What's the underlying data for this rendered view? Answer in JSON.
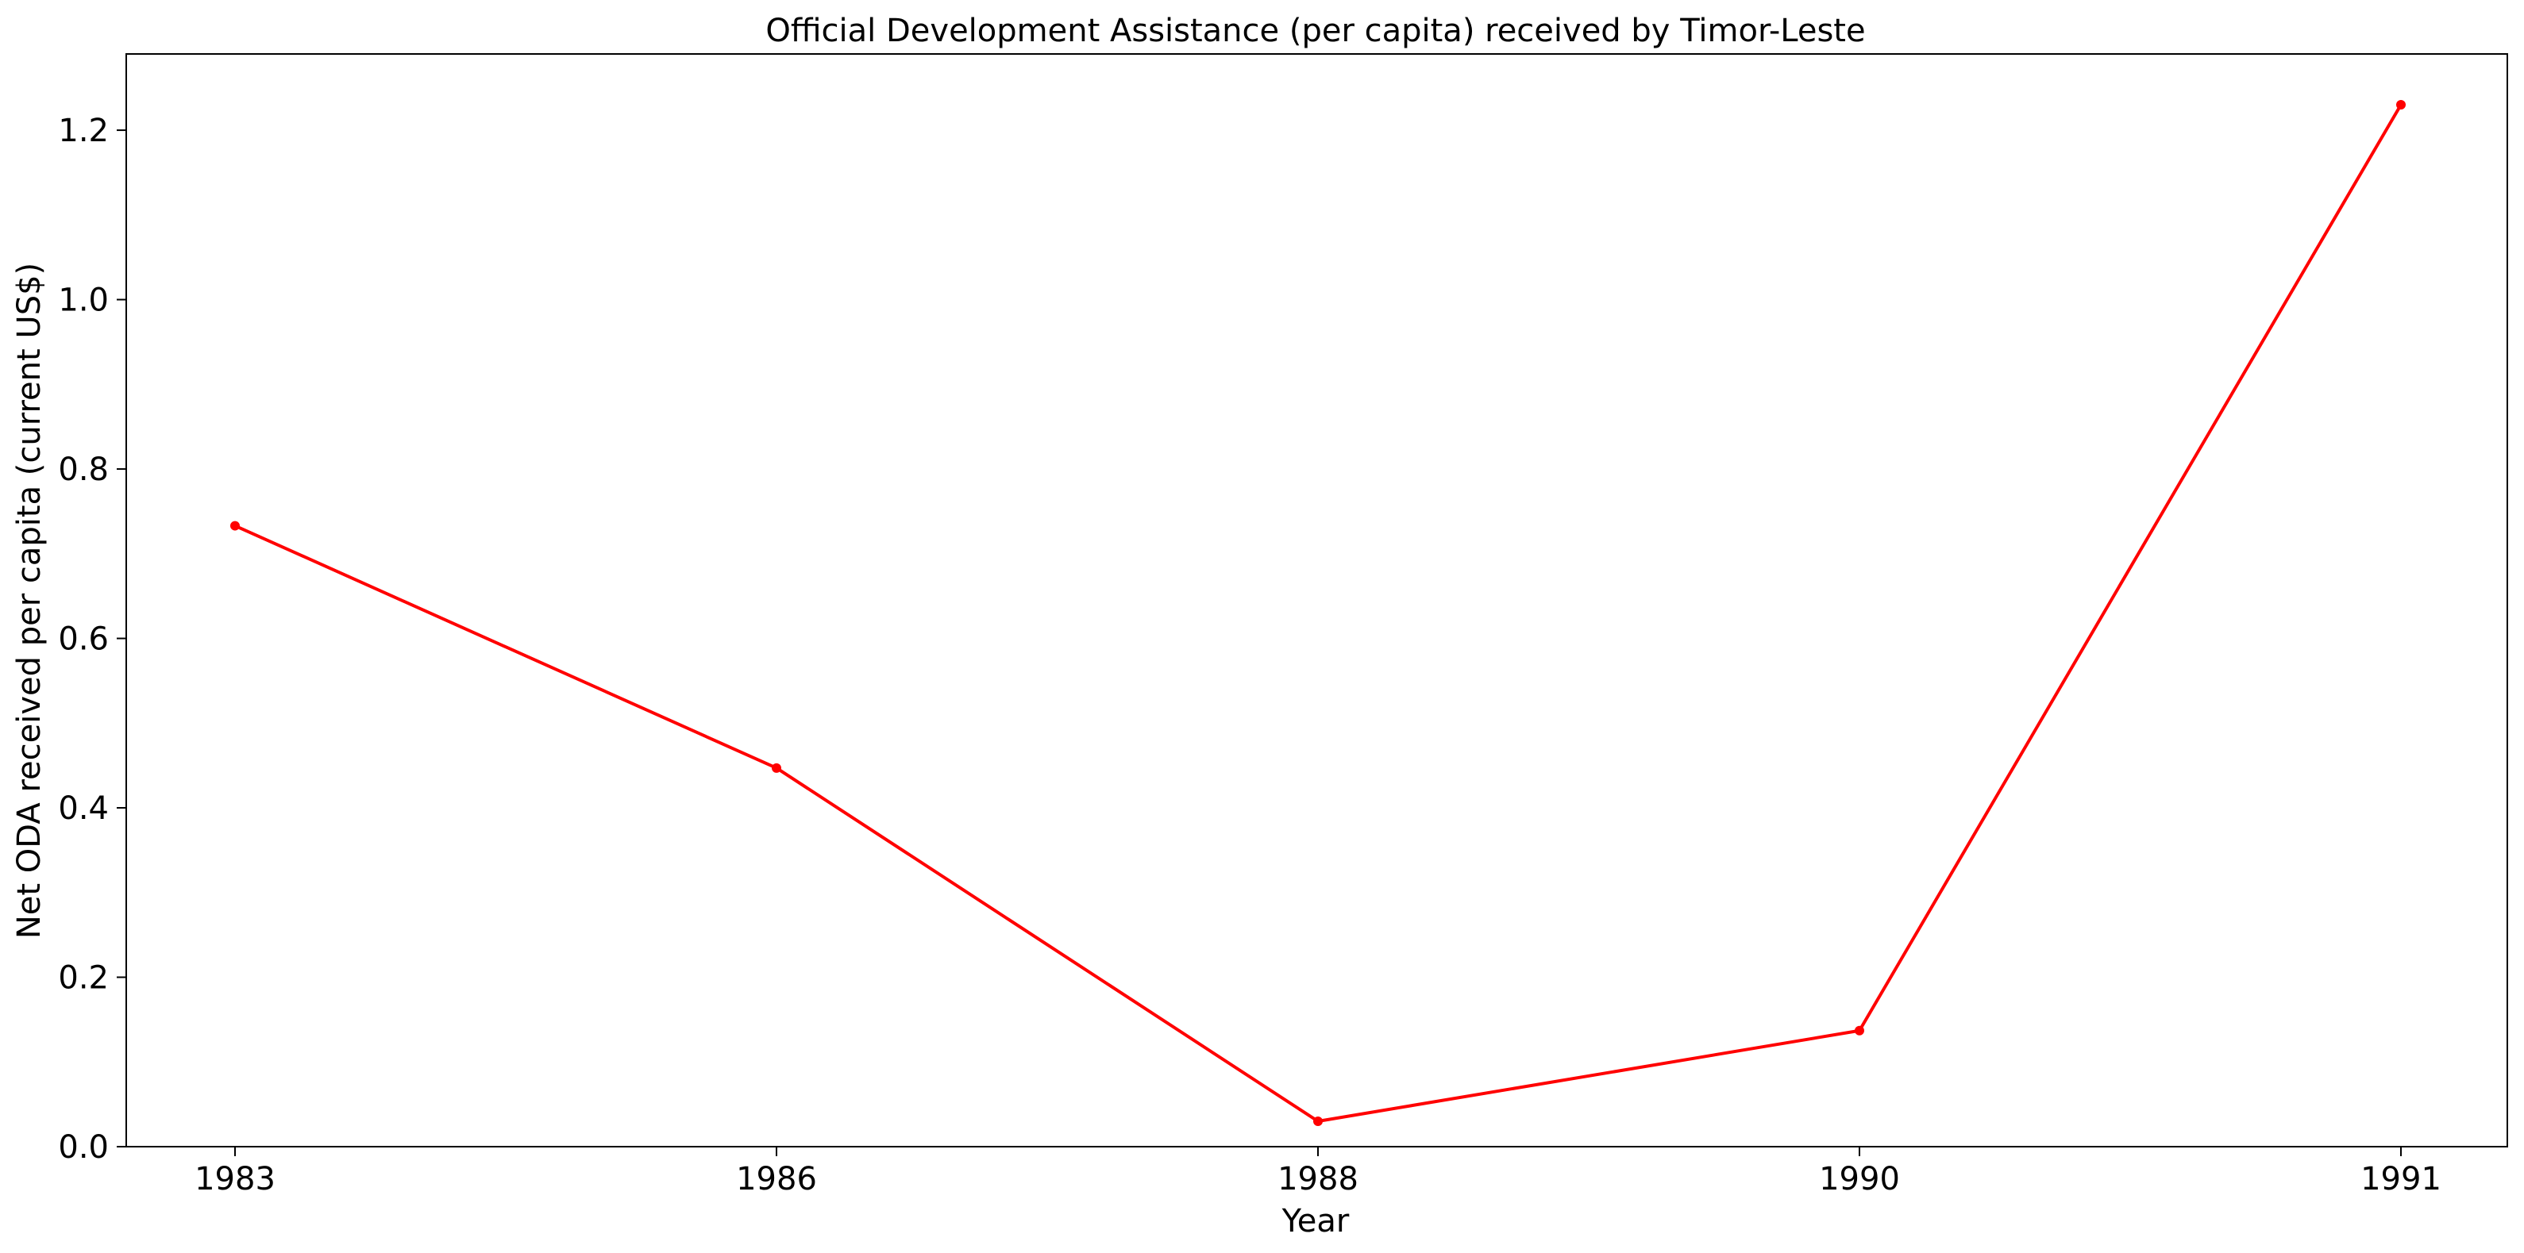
{
  "chart_data": {
    "type": "line",
    "title": "Official Development Assistance (per capita) received by Timor-Leste",
    "xlabel": "Year",
    "ylabel": "Net ODA received per capita (current US$)",
    "categories": [
      "1983",
      "1986",
      "1988",
      "1990",
      "1991"
    ],
    "series": [
      {
        "values": [
          0.733,
          0.447,
          0.03,
          0.137,
          1.23
        ]
      }
    ],
    "ylim": [
      0,
      1.29
    ],
    "yticks": [
      0.0,
      0.2,
      0.4,
      0.6,
      0.8,
      1.0,
      1.2
    ],
    "grid": false,
    "legend": false,
    "colors": {
      "line": "#ff0000",
      "marker": "#ff0000",
      "axis": "#000000"
    }
  }
}
